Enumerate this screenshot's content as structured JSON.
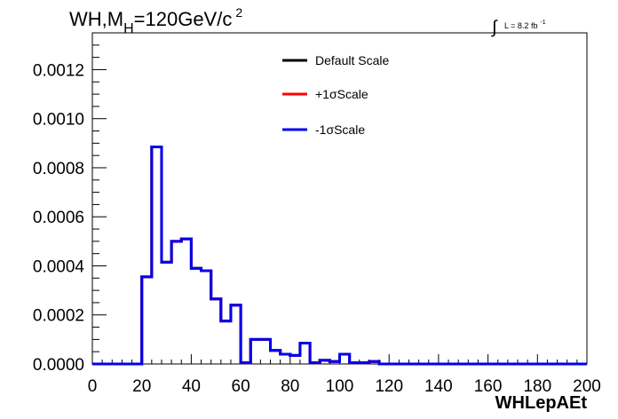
{
  "header": {
    "title_main": "WH,M",
    "title_sub": "H",
    "title_rest": "=120GeV/c",
    "title_sup": "2",
    "lumi_integral": "∫",
    "lumi_text": "L = 8.2 fb",
    "lumi_sup": "-1"
  },
  "legend": {
    "entries": [
      {
        "label": "Default Scale",
        "color": "#000000"
      },
      {
        "label": "+1σScale",
        "color": "#ff0000"
      },
      {
        "label": "-1σScale",
        "color": "#0000ee"
      }
    ]
  },
  "chart_data": {
    "type": "line",
    "drawstyle": "steps",
    "title": "WH,M_H=120GeV/c^2",
    "xlabel": "WHLepAEt",
    "ylabel": "",
    "xlim": [
      0,
      200
    ],
    "ylim": [
      0,
      0.00135
    ],
    "grid": false,
    "legend_position": "top-center",
    "bin_width": 4,
    "x_bin_edges": [
      0,
      4,
      8,
      12,
      16,
      20,
      24,
      28,
      32,
      36,
      40,
      44,
      48,
      52,
      56,
      60,
      64,
      68,
      72,
      76,
      80,
      84,
      88,
      92,
      96,
      100,
      104,
      108,
      112,
      116,
      120,
      124,
      128,
      132,
      136,
      140,
      144,
      148,
      152,
      156,
      160,
      164,
      168,
      172,
      176,
      180,
      184,
      188,
      192,
      196,
      200
    ],
    "x_ticks": [
      "0",
      "20",
      "40",
      "60",
      "80",
      "100",
      "120",
      "140",
      "160",
      "180",
      "200"
    ],
    "y_ticks": [
      "0.0000",
      "0.0002",
      "0.0004",
      "0.0006",
      "0.0008",
      "0.0010",
      "0.0012"
    ],
    "series": [
      {
        "name": "Default Scale",
        "color": "#000000",
        "values": [
          0,
          0,
          0,
          0,
          0,
          0.000355,
          0.000885,
          0.000415,
          0.0005,
          0.00051,
          0.00039,
          0.00038,
          0.000265,
          0.000175,
          0.00024,
          5e-06,
          0.0001,
          0.0001,
          5.5e-05,
          4e-05,
          3.5e-05,
          8.5e-05,
          5e-06,
          1.5e-05,
          1e-05,
          4e-05,
          5e-06,
          5e-06,
          1e-05,
          0,
          0,
          0,
          0,
          0,
          0,
          0,
          0,
          0,
          0,
          0,
          0,
          0,
          0,
          0,
          0,
          0,
          0,
          0,
          0,
          0
        ]
      },
      {
        "name": "+1σScale",
        "color": "#ff0000",
        "values": [
          0,
          0,
          0,
          0,
          0,
          0.000355,
          0.000885,
          0.000415,
          0.0005,
          0.00051,
          0.00039,
          0.00038,
          0.000265,
          0.000175,
          0.00024,
          5e-06,
          0.0001,
          0.0001,
          5.5e-05,
          4e-05,
          3.5e-05,
          8.5e-05,
          5e-06,
          1.5e-05,
          1e-05,
          4e-05,
          5e-06,
          5e-06,
          1e-05,
          0,
          0,
          0,
          0,
          0,
          0,
          0,
          0,
          0,
          0,
          0,
          0,
          0,
          0,
          0,
          0,
          0,
          0,
          0,
          0,
          0
        ]
      },
      {
        "name": "-1σScale",
        "color": "#0000ee",
        "values": [
          0,
          0,
          0,
          0,
          0,
          0.000355,
          0.000885,
          0.000415,
          0.0005,
          0.00051,
          0.00039,
          0.00038,
          0.000265,
          0.000175,
          0.00024,
          5e-06,
          0.0001,
          0.0001,
          5.5e-05,
          4e-05,
          3.5e-05,
          8.5e-05,
          5e-06,
          1.5e-05,
          1e-05,
          4e-05,
          5e-06,
          5e-06,
          1e-05,
          0,
          0,
          0,
          0,
          0,
          0,
          0,
          0,
          0,
          0,
          0,
          0,
          0,
          0,
          0,
          0,
          0,
          0,
          0,
          0,
          0
        ]
      }
    ]
  }
}
